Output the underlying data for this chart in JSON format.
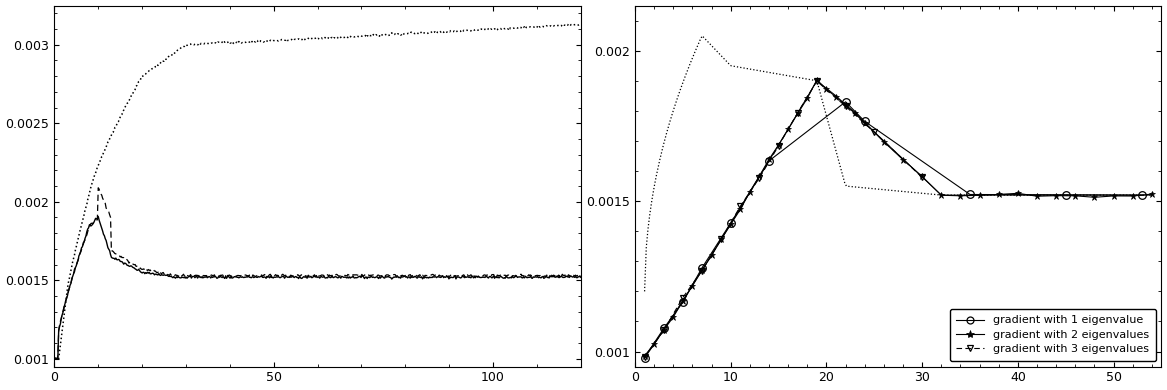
{
  "left_plot": {
    "xlim": [
      0,
      120
    ],
    "ylim": [
      0.00095,
      0.00325
    ],
    "yticks": [
      0.001,
      0.0015,
      0.002,
      0.0025,
      0.003
    ],
    "xticks": [
      0,
      50,
      100
    ],
    "xlabel": "",
    "ylabel": ""
  },
  "right_plot": {
    "xlim": [
      0,
      55
    ],
    "ylim": [
      0.00095,
      0.00215
    ],
    "yticks": [
      0.001,
      0.0015,
      0.002
    ],
    "xticks": [
      0,
      10,
      20,
      30,
      40,
      50
    ],
    "xlabel": "",
    "ylabel": "",
    "legend_labels": [
      "gradient with 1 eigenvalue",
      "gradient with 2 eigenvalues",
      "gradient with 3 eigenvalues"
    ]
  }
}
